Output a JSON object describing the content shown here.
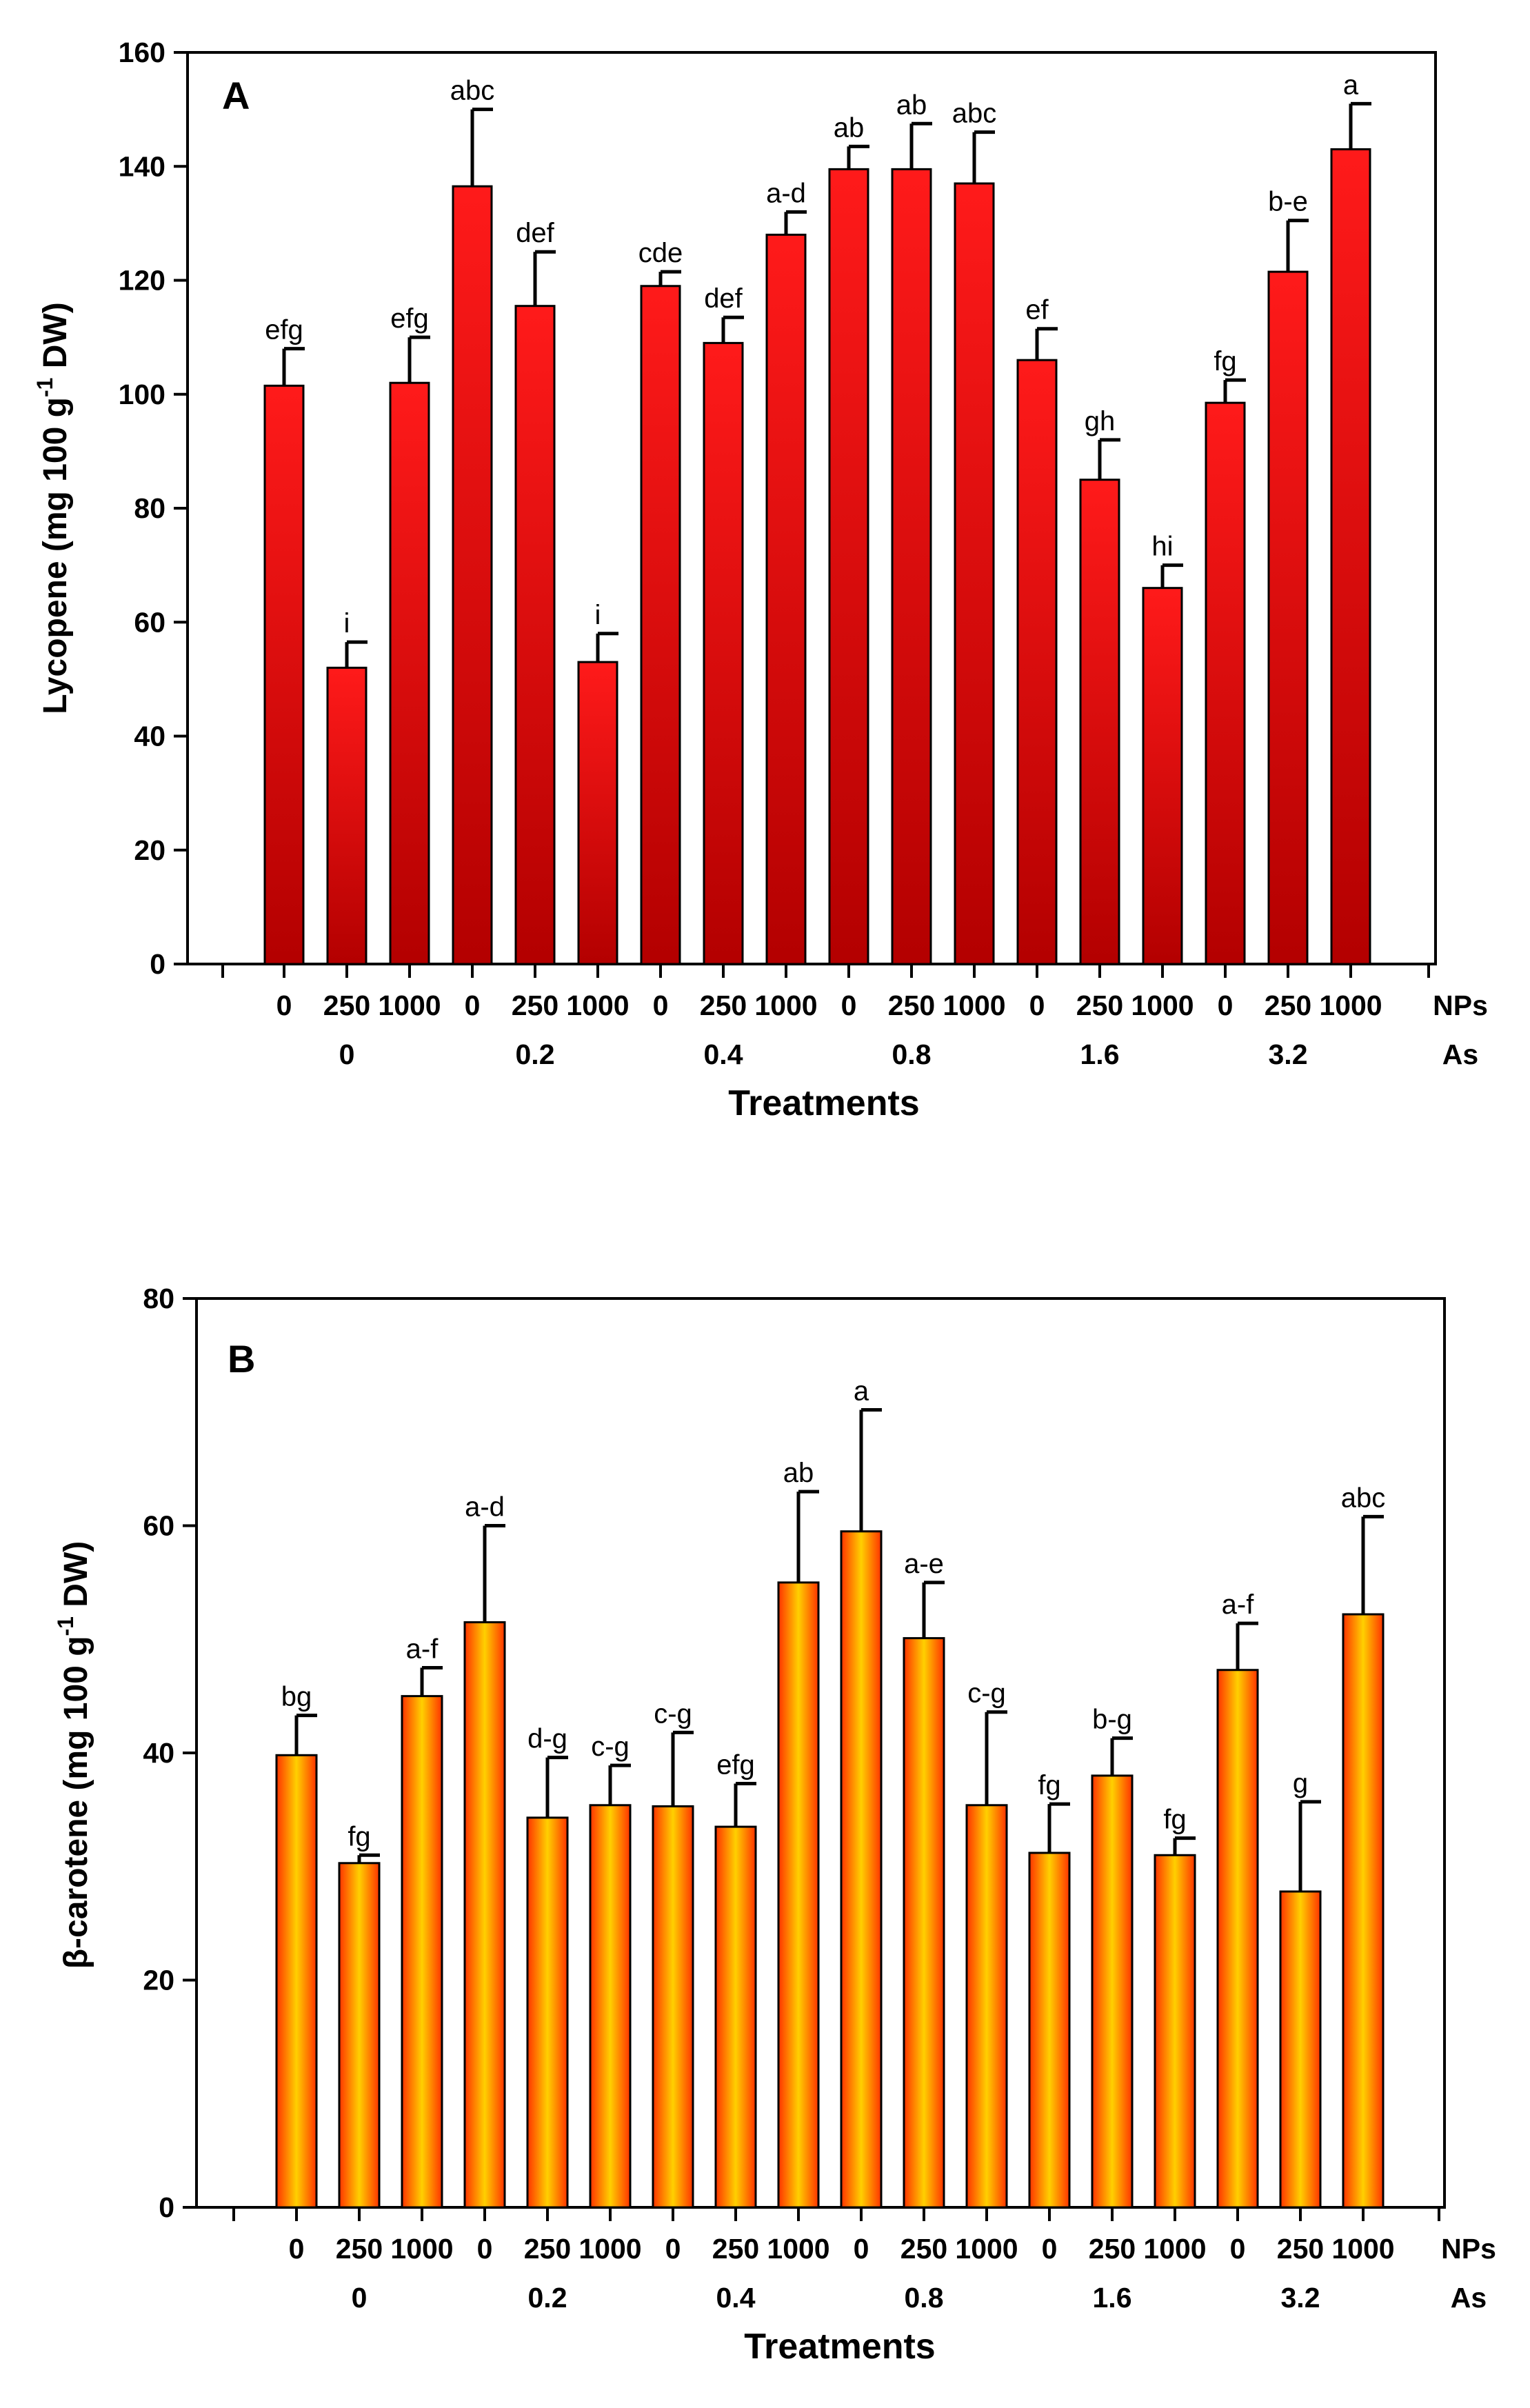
{
  "chart_data": [
    {
      "type": "bar",
      "panel_label": "A",
      "ylabel_main": "Lycopene (mg 100 g",
      "ylabel_sup": "-1",
      "ylabel_end": " DW)",
      "xlabel": "Treatments",
      "ylim": [
        0,
        160
      ],
      "yticks": [
        0,
        20,
        40,
        60,
        80,
        100,
        120,
        140,
        160
      ],
      "np_row_label": "NPs",
      "as_row_label": "As",
      "categories": [
        "0",
        "250",
        "1000",
        "0",
        "250",
        "1000",
        "0",
        "250",
        "1000",
        "0",
        "250",
        "1000",
        "0",
        "250",
        "1000",
        "0",
        "250",
        "1000"
      ],
      "groups": [
        "0",
        "0.2",
        "0.4",
        "0.8",
        "1.6",
        "3.2"
      ],
      "values": [
        101.5,
        52,
        102,
        136.5,
        115.5,
        53,
        119,
        109,
        128,
        139.5,
        139.5,
        137,
        106,
        85,
        66,
        98.5,
        121.5,
        143
      ],
      "errors": [
        6.5,
        4.5,
        8,
        13.5,
        9.5,
        5,
        2.5,
        4.5,
        4,
        4,
        8,
        9,
        5.5,
        7,
        4,
        4,
        9,
        8
      ],
      "letters": [
        "efg",
        "i",
        "efg",
        "abc",
        "def",
        "i",
        "cde",
        "def",
        "a-d",
        "ab",
        "ab",
        "abc",
        "ef",
        "gh",
        "hi",
        "fg",
        "b-e",
        "a"
      ],
      "colors": {
        "top": "#ff1a1a",
        "bottom": "#b30000",
        "edge": "#000000"
      }
    },
    {
      "type": "bar",
      "panel_label": "B",
      "ylabel_main": "β-carotene (mg 100 g",
      "ylabel_sup": "-1",
      "ylabel_end": " DW)",
      "xlabel": "Treatments",
      "ylim": [
        0,
        80
      ],
      "yticks": [
        0,
        20,
        40,
        60,
        80
      ],
      "np_row_label": "NPs",
      "as_row_label": "As",
      "categories": [
        "0",
        "250",
        "1000",
        "0",
        "250",
        "1000",
        "0",
        "250",
        "1000",
        "0",
        "250",
        "1000",
        "0",
        "250",
        "1000",
        "0",
        "250",
        "1000"
      ],
      "groups": [
        "0",
        "0.2",
        "0.4",
        "0.8",
        "1.6",
        "3.2"
      ],
      "values": [
        39.8,
        30.3,
        45,
        51.5,
        34.3,
        35.4,
        35.3,
        33.5,
        55,
        59.5,
        50.1,
        35.4,
        31.2,
        38,
        31,
        47.3,
        27.8,
        52.2
      ],
      "errors": [
        3.5,
        0.7,
        2.5,
        8.5,
        5.3,
        3.5,
        6.5,
        3.8,
        8,
        10.7,
        4.9,
        8.2,
        4.3,
        3.3,
        1.5,
        4.1,
        7.9,
        8.6
      ],
      "letters": [
        "bg",
        "fg",
        "a-f",
        "a-d",
        "d-g",
        "c-g",
        "c-g",
        "efg",
        "ab",
        "a",
        "a-e",
        "c-g",
        "fg",
        "b-g",
        "fg",
        "a-f",
        "g",
        "abc"
      ],
      "colors": {
        "left": "#ff3300",
        "mid": "#ffd000",
        "right": "#ff3300",
        "edge": "#000000"
      }
    }
  ]
}
